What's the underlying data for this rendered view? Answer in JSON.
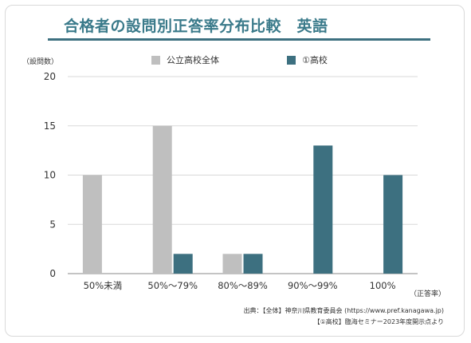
{
  "chart_data": {
    "type": "bar",
    "title": "合格者の設問別正答率分布比較　英語",
    "ylabel": "（設問数）",
    "xlabel": "（正答率）",
    "categories": [
      "50%未満",
      "50%～79%",
      "80%～89%",
      "90%～99%",
      "100%"
    ],
    "ylim": [
      0,
      20
    ],
    "yticks": [
      0,
      5,
      10,
      15,
      20
    ],
    "series": [
      {
        "name": "公立高校全体",
        "color": "#bfbfbf",
        "values": [
          10,
          15,
          2,
          0,
          0
        ]
      },
      {
        "name": "①高校",
        "color": "#3d7080",
        "values": [
          0,
          2,
          2,
          13,
          10
        ]
      }
    ],
    "grid": true,
    "legend": "top"
  },
  "source": {
    "line1": "出典：【全体】神奈川県教育委員会 (https://www.pref.kanagawa.jp)",
    "line2": "【①高校】臨海セミナー2023年度開示点より"
  }
}
